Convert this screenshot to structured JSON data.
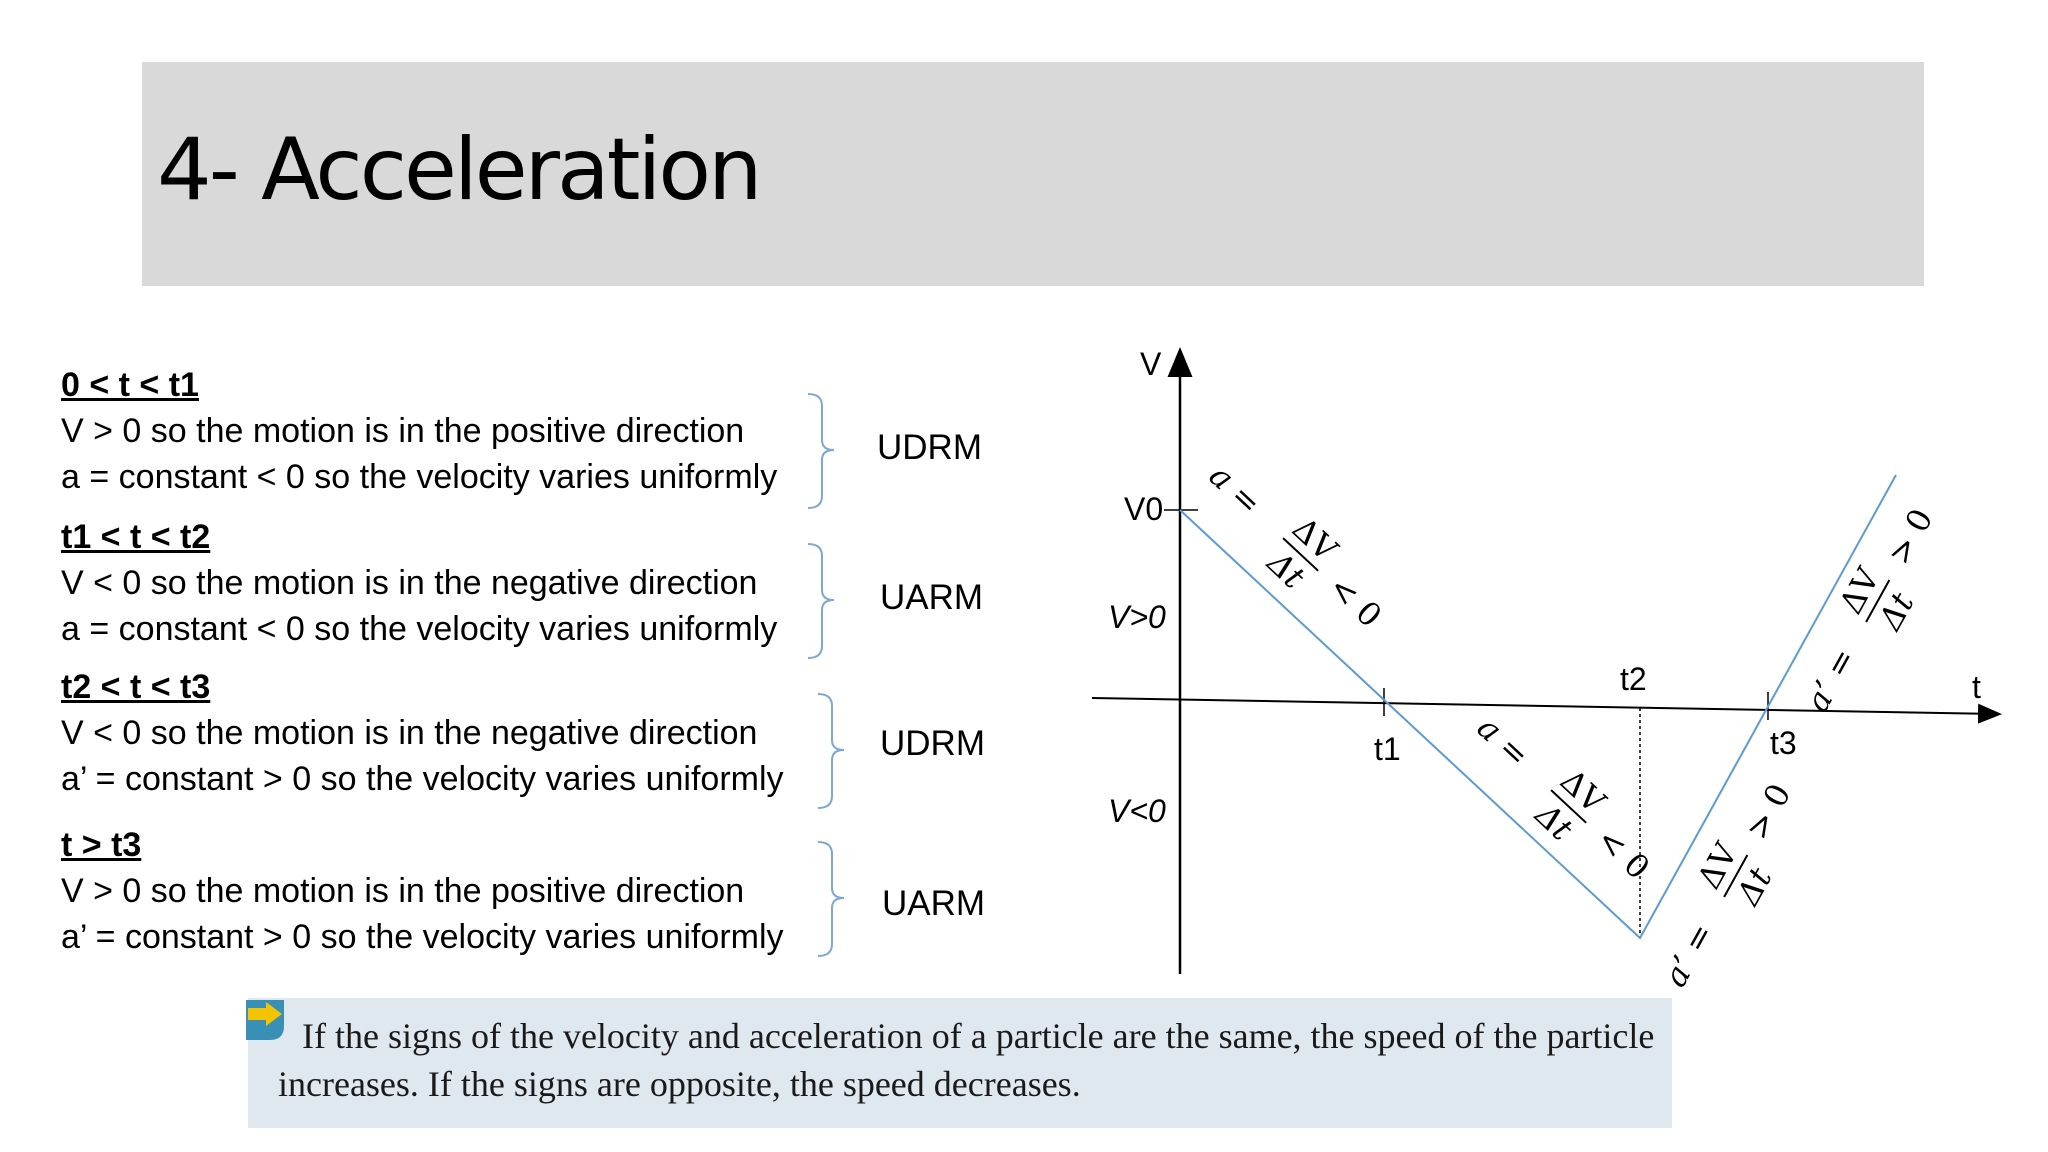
{
  "title": "4- Acceleration",
  "sections": [
    {
      "heading": "0 < t < t1",
      "line1": "V > 0 so the motion is in the positive direction",
      "line2": "a = constant < 0 so the velocity varies uniformly",
      "motion": "UDRM"
    },
    {
      "heading": "t1 < t < t2",
      "line1": "V < 0 so the motion is in the negative direction",
      "line2": "a = constant < 0 so the velocity varies uniformly",
      "motion": "UARM"
    },
    {
      "heading": "t2 < t < t3",
      "line1": "V < 0 so the motion is in the negative direction",
      "line2": "a’ = constant > 0 so the velocity varies uniformly",
      "motion": "UDRM"
    },
    {
      "heading": "t > t3",
      "line1": "V > 0 so the motion is in the positive direction",
      "line2": "a’ = constant > 0 so the velocity varies uniformly",
      "motion": "UARM"
    }
  ],
  "diagram": {
    "v_axis_label": "V",
    "t_axis_label": "t",
    "v0_label": "V0",
    "v_positive_label": "V>0",
    "v_negative_label": "V<0",
    "t1_label": "t1",
    "t2_label": "t2",
    "t3_label": "t3",
    "slope1": {
      "lhs": "a =",
      "num": "ΔV",
      "den": "Δt",
      "rhs": "< 0"
    },
    "slope2": {
      "lhs": "a =",
      "num": "ΔV",
      "den": "Δt",
      "rhs": "< 0"
    },
    "slope3": {
      "lhs": "a’ =",
      "num": "ΔV",
      "den": "Δt",
      "rhs": "> 0"
    },
    "slope4": {
      "lhs": "a’ =",
      "num": "ΔV",
      "den": "Δt",
      "rhs": "> 0"
    },
    "line_color": "#5b9bd5"
  },
  "callout": {
    "text": "If the signs of the velocity and acceleration of a particle are the same, the speed of the particle increases. If the signs are opposite, the speed decreases.",
    "icon": "arrow-right-icon",
    "icon_color": "#3a8fb7",
    "icon_arrow_color": "#f5c400"
  }
}
